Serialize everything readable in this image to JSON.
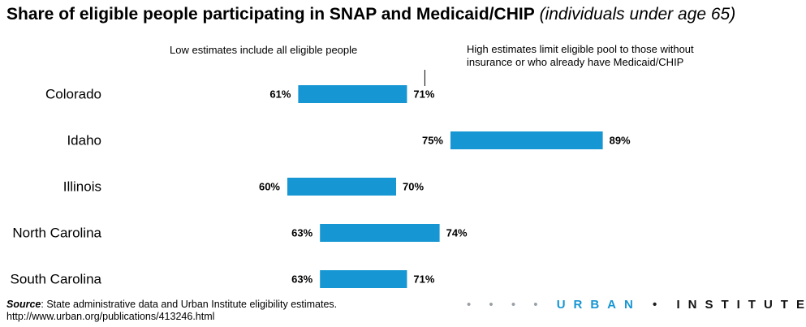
{
  "title": {
    "main": "Share of eligible people participating in SNAP and Medicaid/CHIP",
    "sub": "(individuals under age 65)"
  },
  "annotations": {
    "low": "Low estimates include all eligible people",
    "high_line1": "High estimates limit eligible pool to those without",
    "high_line2": "insurance or who already have Medicaid/CHIP"
  },
  "chart_data": {
    "type": "bar",
    "subtype": "range",
    "categories": [
      "Colorado",
      "Idaho",
      "Illinois",
      "North Carolina",
      "South Carolina"
    ],
    "series": [
      {
        "name": "Low estimate",
        "values": [
          61,
          75,
          60,
          63,
          63
        ]
      },
      {
        "name": "High estimate",
        "values": [
          71,
          89,
          70,
          74,
          71
        ]
      }
    ],
    "low_labels": [
      "61%",
      "75%",
      "60%",
      "63%",
      "63%"
    ],
    "high_labels": [
      "71%",
      "89%",
      "70%",
      "74%",
      "71%"
    ],
    "bar_color": "#1696d2",
    "xlim": [
      50,
      100
    ],
    "grid": false
  },
  "source": {
    "label": "Source",
    "text": ": State administrative data and Urban Institute eligibility  estimates.",
    "url": "http://www.urban.org/publications/413246.html"
  },
  "logo": {
    "dots": "• • • •",
    "brand1": "URBAN",
    "sep": "•",
    "brand2": "INSTITUTE",
    "end": "•"
  }
}
